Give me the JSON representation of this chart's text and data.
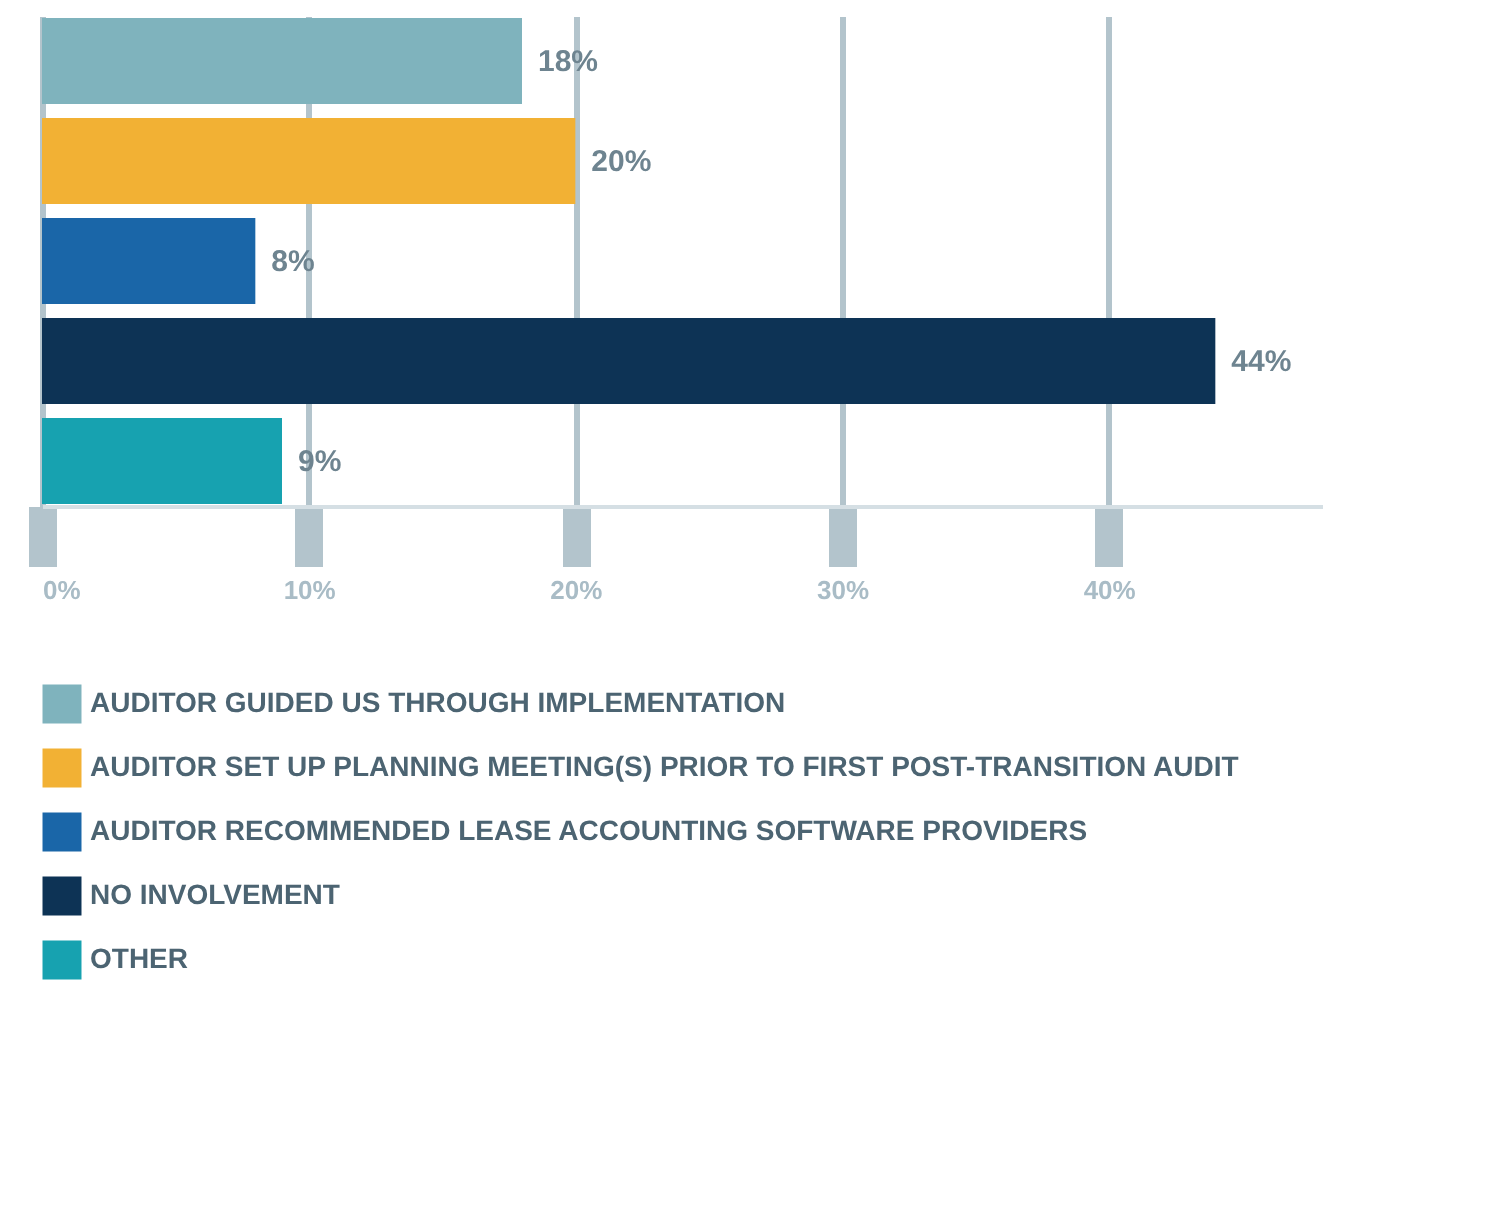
{
  "chart_data": {
    "type": "bar",
    "orientation": "horizontal",
    "categories": [
      null,
      null,
      null,
      null,
      null
    ],
    "series": [
      {
        "name": "AUDITOR GUIDED US THROUGH IMPLEMENTATION",
        "color": "#7fb3bd",
        "values": [
          18,
          null,
          null,
          null,
          null
        ],
        "value_labels": [
          "18%",
          null,
          null,
          null,
          null
        ]
      },
      {
        "name": "AUDITOR SET UP PLANNING MEETING(S) PRIOR TO FIRST POST-TRANSITION AUDIT",
        "color": "#f2b134",
        "values": [
          null,
          20,
          null,
          null,
          null
        ],
        "value_labels": [
          null,
          "20%",
          null,
          null,
          null
        ]
      },
      {
        "name": "AUDITOR RECOMMENDED LEASE ACCOUNTING SOFTWARE PROVIDERS",
        "color": "#1a66a8",
        "values": [
          null,
          null,
          8,
          null,
          null
        ],
        "value_labels": [
          null,
          null,
          "8%",
          null,
          null
        ]
      },
      {
        "name": "NO INVOLVEMENT",
        "color": "#0d3355",
        "values": [
          null,
          null,
          null,
          44,
          null
        ],
        "value_labels": [
          null,
          null,
          null,
          "44%",
          null
        ]
      },
      {
        "name": "OTHER",
        "color": "#17a2b0",
        "values": [
          null,
          null,
          null,
          null,
          9
        ],
        "value_labels": [
          null,
          null,
          null,
          null,
          "9%"
        ]
      }
    ],
    "xlim": [
      0,
      48
    ],
    "xticks": [
      {
        "value": 0,
        "label": "0%"
      },
      {
        "value": 10,
        "label": "10%"
      },
      {
        "value": 20,
        "label": "20%"
      },
      {
        "value": 30,
        "label": "30%"
      },
      {
        "value": 40,
        "label": "40%"
      }
    ],
    "grid": "x",
    "legend": "bottom"
  }
}
